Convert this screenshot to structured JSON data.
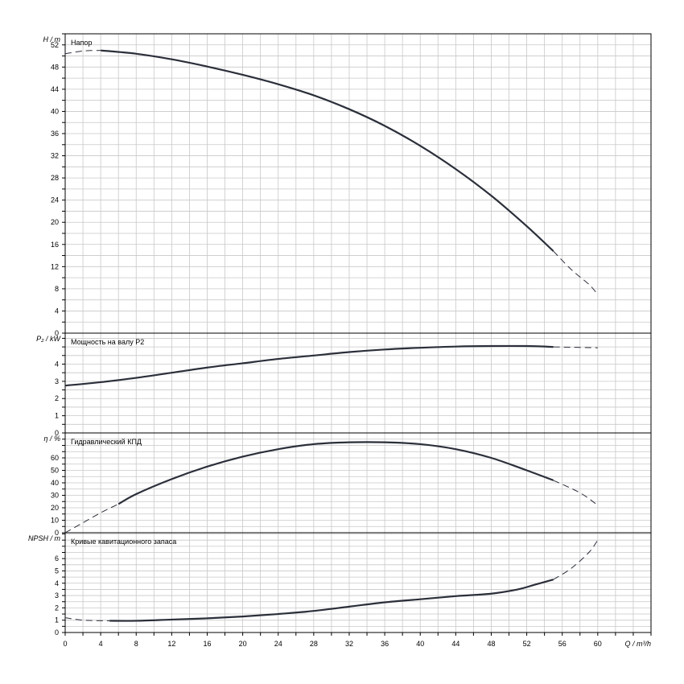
{
  "chart_data": {
    "type": "line",
    "x_axis": {
      "title": "Q / m³/h",
      "range": [
        0,
        66
      ],
      "tick_labels": [
        "0",
        "4",
        "8",
        "12",
        "16",
        "20",
        "24",
        "28",
        "32",
        "36",
        "40",
        "44",
        "48",
        "52",
        "56",
        "60"
      ]
    },
    "grid": true,
    "panels": [
      {
        "key": "head",
        "title": "Напор",
        "ylabel": "H / m",
        "ylim": [
          0,
          54
        ],
        "y_ticks": [
          "0",
          "4",
          "8",
          "12",
          "16",
          "20",
          "24",
          "28",
          "32",
          "36",
          "40",
          "44",
          "48",
          "52"
        ],
        "series": [
          {
            "style": "solid",
            "points": [
              [
                4,
                51
              ],
              [
                8,
                50.4
              ],
              [
                12,
                49.4
              ],
              [
                16,
                48.1
              ],
              [
                20,
                46.6
              ],
              [
                24,
                44.9
              ],
              [
                28,
                42.9
              ],
              [
                32,
                40.4
              ],
              [
                36,
                37.4
              ],
              [
                40,
                33.8
              ],
              [
                44,
                29.6
              ],
              [
                48,
                24.8
              ],
              [
                52,
                19.3
              ],
              [
                55,
                14.8
              ]
            ]
          },
          {
            "style": "dashed",
            "points": [
              [
                0,
                50.4
              ],
              [
                2,
                50.9
              ],
              [
                4,
                51
              ]
            ]
          },
          {
            "style": "dashed",
            "points": [
              [
                55,
                14.8
              ],
              [
                57,
                11.5
              ],
              [
                59,
                8.8
              ],
              [
                60,
                7
              ]
            ]
          }
        ]
      },
      {
        "key": "power",
        "title": "Мощность на валу P2",
        "ylabel": "P₂ / kW",
        "ylim": [
          0,
          5.8
        ],
        "y_ticks": [
          "0",
          "1",
          "2",
          "3",
          "4"
        ],
        "series": [
          {
            "style": "solid",
            "points": [
              [
                0,
                2.75
              ],
              [
                4,
                2.95
              ],
              [
                8,
                3.2
              ],
              [
                12,
                3.5
              ],
              [
                16,
                3.8
              ],
              [
                20,
                4.05
              ],
              [
                24,
                4.3
              ],
              [
                28,
                4.5
              ],
              [
                32,
                4.7
              ],
              [
                36,
                4.85
              ],
              [
                40,
                4.95
              ],
              [
                44,
                5.02
              ],
              [
                48,
                5.05
              ],
              [
                52,
                5.05
              ],
              [
                55,
                5.0
              ]
            ]
          },
          {
            "style": "dashed",
            "points": [
              [
                55,
                5.0
              ],
              [
                60,
                4.95
              ]
            ]
          }
        ]
      },
      {
        "key": "efficiency",
        "title": "Гидравлический КПД",
        "ylabel": "η / %",
        "ylim": [
          0,
          80
        ],
        "y_ticks": [
          "0",
          "10",
          "20",
          "30",
          "40",
          "50",
          "60"
        ],
        "series": [
          {
            "style": "solid",
            "points": [
              [
                6,
                23
              ],
              [
                8,
                31
              ],
              [
                12,
                43
              ],
              [
                16,
                53
              ],
              [
                20,
                61
              ],
              [
                24,
                67
              ],
              [
                28,
                71
              ],
              [
                32,
                72.5
              ],
              [
                36,
                72.5
              ],
              [
                40,
                71
              ],
              [
                44,
                67
              ],
              [
                48,
                60
              ],
              [
                52,
                50
              ],
              [
                55,
                42
              ]
            ]
          },
          {
            "style": "dashed",
            "points": [
              [
                0,
                0
              ],
              [
                2,
                8
              ],
              [
                4,
                16
              ],
              [
                6,
                23
              ]
            ]
          },
          {
            "style": "dashed",
            "points": [
              [
                55,
                42
              ],
              [
                58,
                32
              ],
              [
                60,
                22
              ]
            ]
          }
        ]
      },
      {
        "key": "npsh",
        "title": "Кривые кавитационного запаса",
        "ylabel": "NPSH / m",
        "ylim": [
          0,
          8.1
        ],
        "y_ticks": [
          "0",
          "1",
          "2",
          "3",
          "4",
          "5",
          "6"
        ],
        "series": [
          {
            "style": "solid",
            "points": [
              [
                5,
                0.95
              ],
              [
                8,
                0.95
              ],
              [
                12,
                1.05
              ],
              [
                16,
                1.15
              ],
              [
                20,
                1.3
              ],
              [
                24,
                1.5
              ],
              [
                28,
                1.75
              ],
              [
                32,
                2.1
              ],
              [
                36,
                2.45
              ],
              [
                40,
                2.7
              ],
              [
                44,
                2.95
              ],
              [
                48,
                3.15
              ],
              [
                51,
                3.5
              ],
              [
                53,
                3.9
              ],
              [
                55,
                4.3
              ]
            ]
          },
          {
            "style": "dashed",
            "points": [
              [
                0,
                1.2
              ],
              [
                2,
                1.0
              ],
              [
                5,
                0.95
              ]
            ]
          },
          {
            "style": "dashed",
            "points": [
              [
                55,
                4.3
              ],
              [
                57,
                5.2
              ],
              [
                59,
                6.5
              ],
              [
                60,
                7.5
              ]
            ]
          }
        ]
      }
    ]
  }
}
